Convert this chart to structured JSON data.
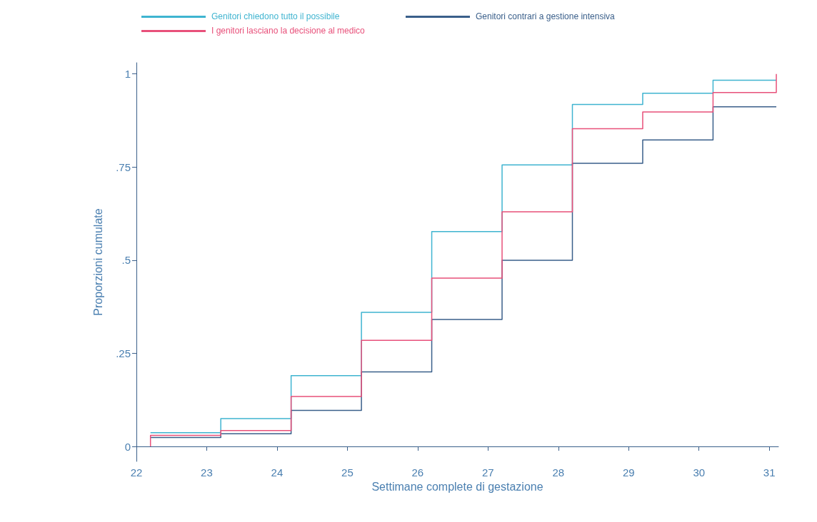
{
  "chart_data": {
    "type": "step",
    "xlabel": "Settimane complete di gestazione",
    "ylabel": "Proporzioni cumulate",
    "xlim": [
      22,
      31.13
    ],
    "xticks": [
      22,
      23,
      24,
      25,
      26,
      27,
      28,
      29,
      30,
      31
    ],
    "ylim": [
      -0.04,
      1.03
    ],
    "yticks": [
      0,
      {
        "value": 0.25,
        "label": ".25"
      },
      {
        "value": 0.5,
        "label": ".5"
      },
      {
        "value": 0.75,
        "label": ".75"
      },
      1
    ],
    "grid": false,
    "legend": "top",
    "line_style": "solid",
    "marker": "none",
    "series": [
      {
        "name": "Genitori chiedono tutto il possibile",
        "color": "#3fb4d0",
        "x": [
          22.2,
          23.2,
          24.2,
          25.2,
          26.2,
          27.2,
          28.2,
          29.2,
          30.2,
          31.1
        ],
        "values": [
          0.037,
          0.075,
          0.19,
          0.36,
          0.577,
          0.756,
          0.918,
          0.948,
          0.983,
          0.983
        ]
      },
      {
        "name": "Genitori contrari a gestione intensiva",
        "color": "#3a5f8a",
        "x": [
          22.2,
          23.2,
          24.2,
          25.2,
          26.2,
          27.2,
          28.2,
          29.2,
          30.2,
          31.1
        ],
        "values": [
          0.024,
          0.034,
          0.097,
          0.2,
          0.341,
          0.5,
          0.76,
          0.823,
          0.912,
          0.912
        ]
      },
      {
        "name": "I genitori lasciano la decisione al medico",
        "color": "#e8507a",
        "x": [
          22.2,
          22.2,
          23.2,
          24.2,
          25.2,
          26.2,
          27.2,
          28.2,
          29.2,
          30.2,
          31.1,
          31.1
        ],
        "values": [
          0,
          0.03,
          0.043,
          0.134,
          0.285,
          0.452,
          0.63,
          0.853,
          0.898,
          0.95,
          0.95,
          1
        ]
      }
    ]
  }
}
